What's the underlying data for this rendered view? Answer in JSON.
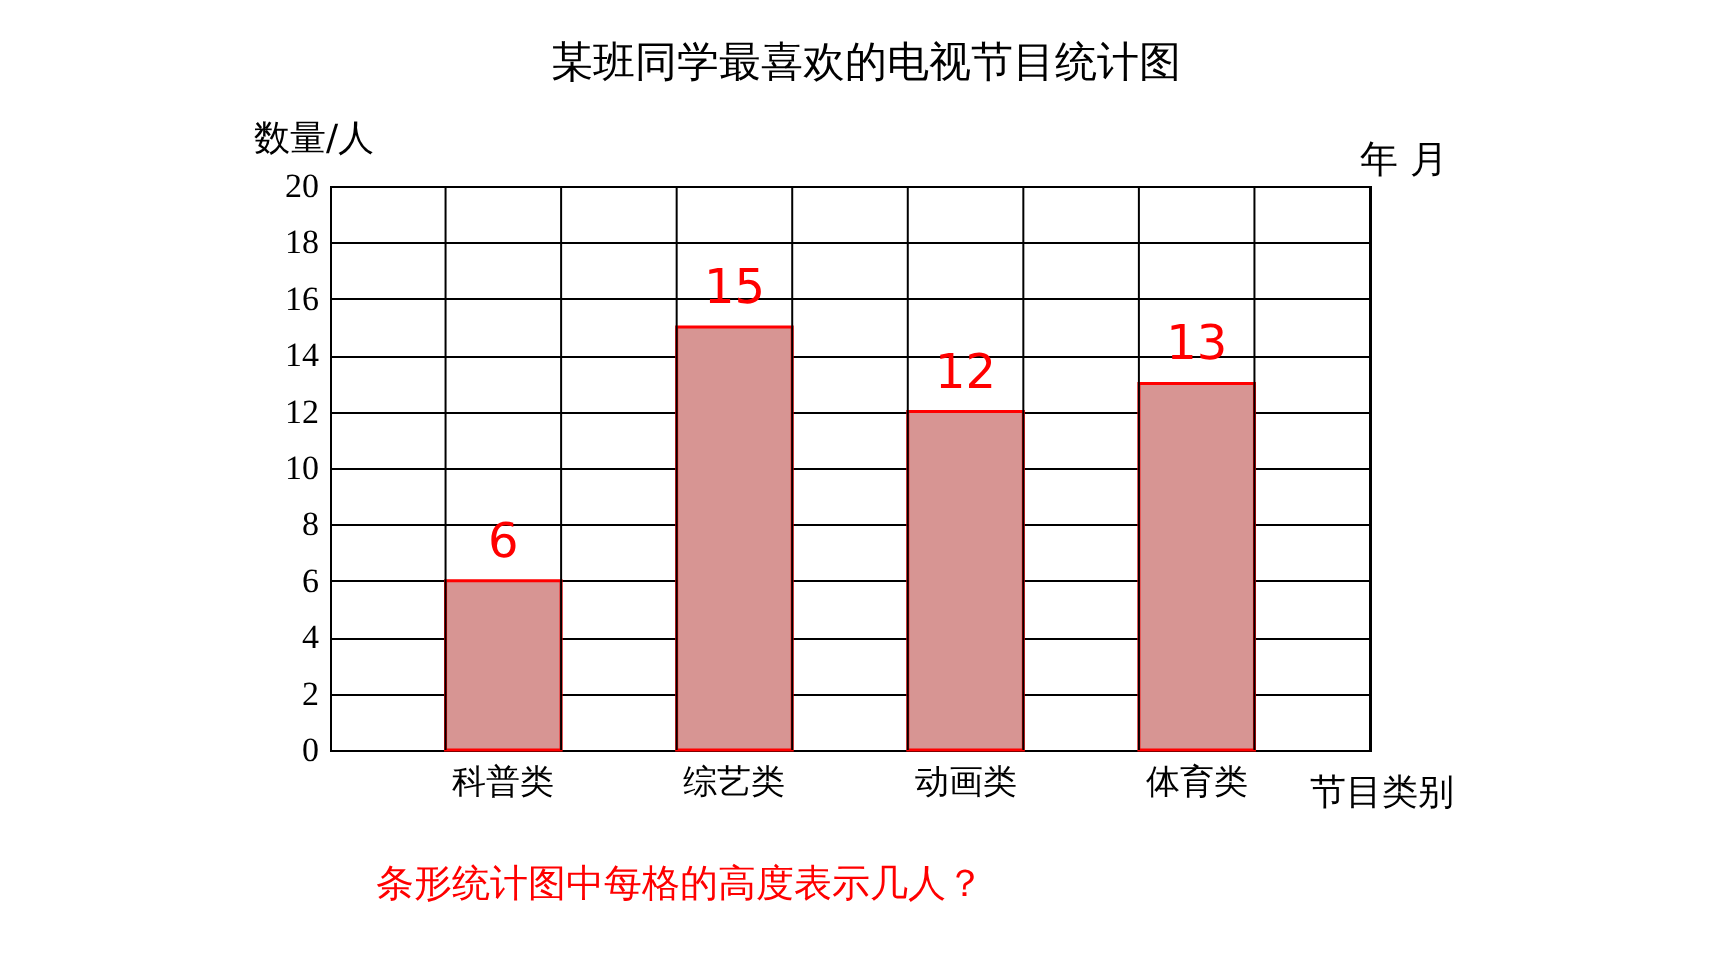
{
  "chart_data": {
    "type": "bar",
    "title": "某班同学最喜欢的电视节目统计图",
    "xlabel": "节目类别",
    "ylabel": "数量/人",
    "categories": [
      "科普类",
      "综艺类",
      "动画类",
      "体育类"
    ],
    "values": [
      6,
      15,
      12,
      13
    ],
    "color": "#d79593",
    "data_labels": true,
    "ylim": [
      0,
      20
    ],
    "yticks": [
      0,
      2,
      4,
      6,
      8,
      10,
      12,
      14,
      16,
      18,
      20
    ],
    "grid": true,
    "annotations": [
      "年     月",
      "条形统计图中每格的高度表示几人？"
    ]
  }
}
